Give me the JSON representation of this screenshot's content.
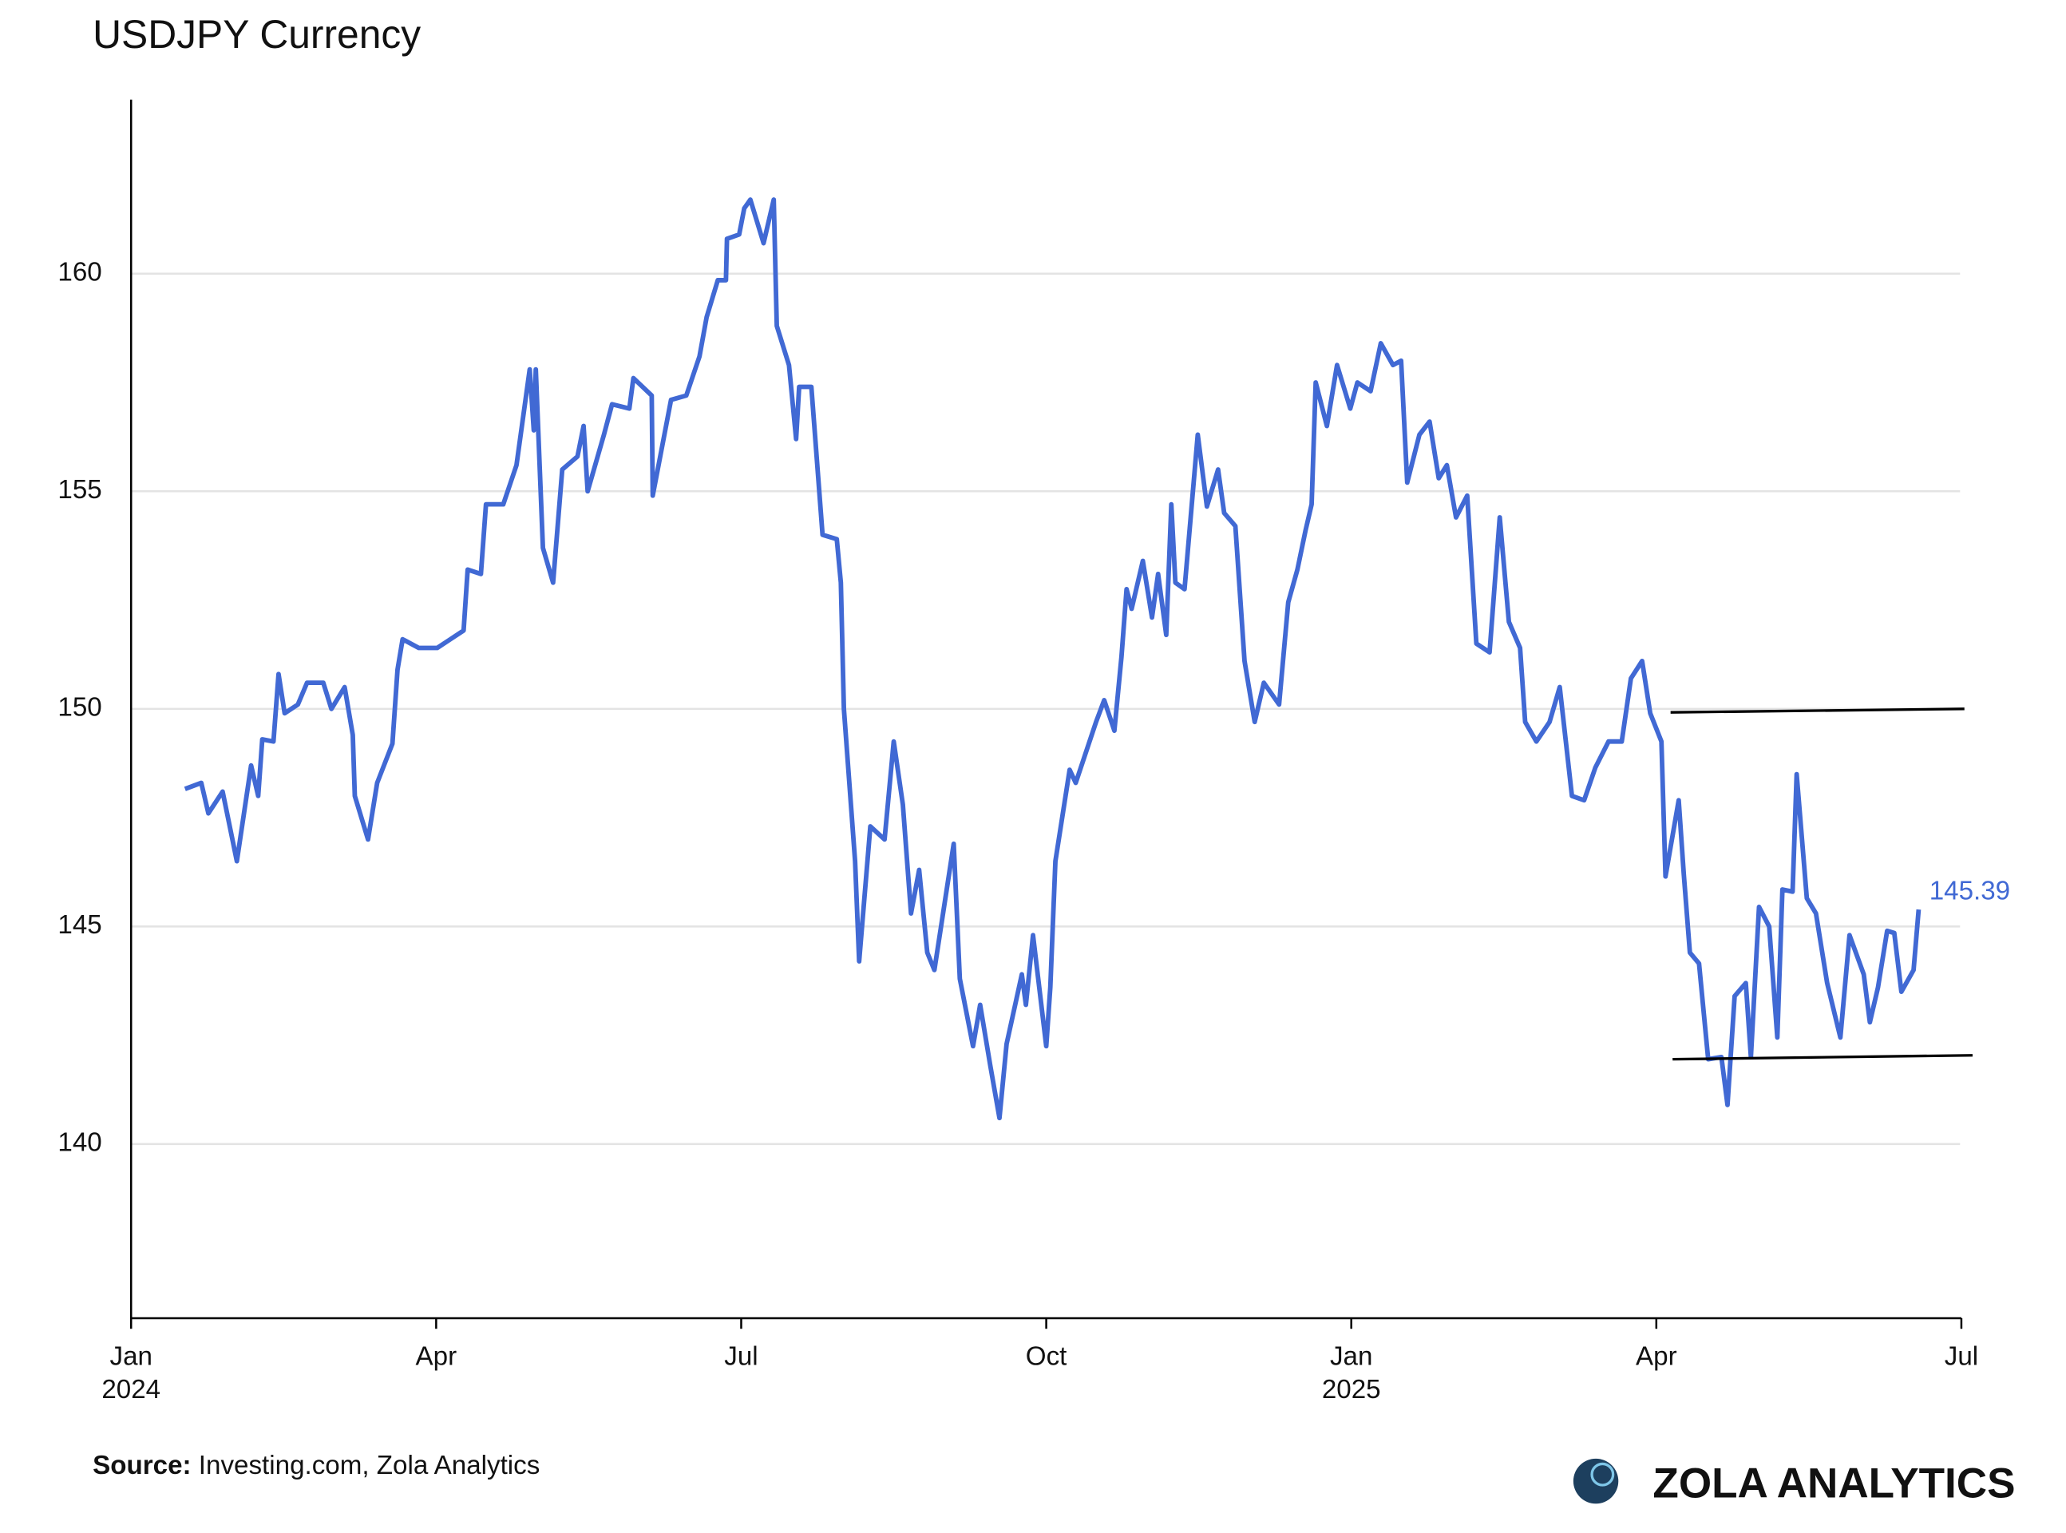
{
  "chart_data": {
    "type": "line",
    "title": "USDJPY Currency",
    "source_label": "Source:",
    "source": "Investing.com, Zola Analytics",
    "brand": "ZOLA ANALYTICS",
    "xlim": [
      0,
      18
    ],
    "xticks": [
      {
        "value": 0,
        "label": "Jan 2024"
      },
      {
        "value": 3,
        "label": "Apr"
      },
      {
        "value": 6,
        "label": "Jul"
      },
      {
        "value": 9,
        "label": "Oct"
      },
      {
        "value": 12,
        "label": "Jan 2025"
      },
      {
        "value": 15,
        "label": "Apr"
      },
      {
        "value": 18,
        "label": "Jul"
      }
    ],
    "ylim": [
      136,
      164
    ],
    "yticks": [
      140,
      145,
      150,
      155,
      160
    ],
    "grid": true,
    "x": [
      0.53,
      0.69,
      0.76,
      0.9,
      1.04,
      1.18,
      1.25,
      1.29,
      1.4,
      1.45,
      1.51,
      1.64,
      1.73,
      1.89,
      1.97,
      2.1,
      2.18,
      2.2,
      2.33,
      2.42,
      2.57,
      2.62,
      2.67,
      2.83,
      3.01,
      3.14,
      3.27,
      3.31,
      3.44,
      3.49,
      3.66,
      3.79,
      3.92,
      3.96,
      3.98,
      4.05,
      4.15,
      4.24,
      4.39,
      4.45,
      4.49,
      4.65,
      4.73,
      4.9,
      4.94,
      5.12,
      5.13,
      5.31,
      5.46,
      5.59,
      5.66,
      5.77,
      5.85,
      5.86,
      5.98,
      6.03,
      6.09,
      6.22,
      6.32,
      6.35,
      6.47,
      6.54,
      6.57,
      6.69,
      6.8,
      6.94,
      6.98,
      7.01,
      7.12,
      7.16,
      7.27,
      7.41,
      7.5,
      7.59,
      7.67,
      7.75,
      7.83,
      7.9,
      8.09,
      8.15,
      8.28,
      8.35,
      8.45,
      8.54,
      8.61,
      8.76,
      8.8,
      8.87,
      9.0,
      9.04,
      9.09,
      9.23,
      9.29,
      9.39,
      9.49,
      9.57,
      9.67,
      9.74,
      9.79,
      9.84,
      9.95,
      10.04,
      10.1,
      10.18,
      10.23,
      10.27,
      10.36,
      10.49,
      10.58,
      10.69,
      10.75,
      10.86,
      10.95,
      11.05,
      11.14,
      11.29,
      11.38,
      11.47,
      11.55,
      11.61,
      11.65,
      11.76,
      11.86,
      11.99,
      12.06,
      12.19,
      12.29,
      12.41,
      12.49,
      12.55,
      12.67,
      12.77,
      12.86,
      12.94,
      13.03,
      13.14,
      13.23,
      13.36,
      13.46,
      13.55,
      13.66,
      13.71,
      13.82,
      13.95,
      14.05,
      14.17,
      14.29,
      14.4,
      14.53,
      14.66,
      14.75,
      14.86,
      14.94,
      15.05,
      15.09,
      15.22,
      15.27,
      15.33,
      15.42,
      15.51,
      15.64,
      15.7,
      15.77,
      15.88,
      15.93,
      16.01,
      16.11,
      16.19,
      16.24,
      16.34,
      16.38,
      16.48,
      16.57,
      16.68,
      16.81,
      16.9,
      17.04,
      17.1,
      17.18,
      17.27,
      17.34,
      17.41,
      17.53,
      17.58
    ],
    "series": [
      {
        "color": "#4169d4",
        "values": [
          148.16,
          148.3,
          147.6,
          148.1,
          146.5,
          148.7,
          148.0,
          149.3,
          149.25,
          150.8,
          149.9,
          150.1,
          150.6,
          150.6,
          150.0,
          150.5,
          149.4,
          148.0,
          147.0,
          148.3,
          149.2,
          150.9,
          151.6,
          151.4,
          151.4,
          151.6,
          151.8,
          153.2,
          153.1,
          154.7,
          154.7,
          155.6,
          157.8,
          156.4,
          157.8,
          153.7,
          152.9,
          155.5,
          155.8,
          156.5,
          155.0,
          156.3,
          157.0,
          156.9,
          157.6,
          157.2,
          154.9,
          157.1,
          157.2,
          158.1,
          159.0,
          159.85,
          159.85,
          160.8,
          160.9,
          161.5,
          161.7,
          160.7,
          161.7,
          158.8,
          157.9,
          156.2,
          157.4,
          157.4,
          154.0,
          153.9,
          152.9,
          150.0,
          146.5,
          144.2,
          147.3,
          147.0,
          149.25,
          147.8,
          145.3,
          146.3,
          144.4,
          144.0,
          146.9,
          143.8,
          142.25,
          143.2,
          141.8,
          140.6,
          142.3,
          143.9,
          143.2,
          144.8,
          142.25,
          143.6,
          146.5,
          148.6,
          148.3,
          149.0,
          149.7,
          150.2,
          149.5,
          151.2,
          152.75,
          152.3,
          153.4,
          152.1,
          153.1,
          151.7,
          154.7,
          152.9,
          152.75,
          156.3,
          154.65,
          155.5,
          154.5,
          154.2,
          151.1,
          149.7,
          150.6,
          150.1,
          152.45,
          153.2,
          154.1,
          154.7,
          157.5,
          156.5,
          157.9,
          156.9,
          157.5,
          157.3,
          158.4,
          157.9,
          158.0,
          155.2,
          156.3,
          156.6,
          155.3,
          155.6,
          154.4,
          154.9,
          151.5,
          151.3,
          154.4,
          152.0,
          151.4,
          149.7,
          149.25,
          149.7,
          150.5,
          148.0,
          147.9,
          148.65,
          149.25,
          149.25,
          150.7,
          151.1,
          149.9,
          149.25,
          146.15,
          147.9,
          146.2,
          144.4,
          144.15,
          141.95,
          142.0,
          140.9,
          143.4,
          143.7,
          142.0,
          145.45,
          145.0,
          142.45,
          145.85,
          145.8,
          148.5,
          145.65,
          145.3,
          143.7,
          142.45,
          144.8,
          143.9,
          142.8,
          143.6,
          144.9,
          144.85,
          143.5,
          144.0,
          145.39
        ]
      }
    ],
    "lines": [
      {
        "color": "#000000",
        "x": [
          15.14,
          18.03
        ],
        "y": [
          149.92,
          150.0
        ]
      },
      {
        "color": "#000000",
        "x": [
          15.16,
          18.11
        ],
        "y": [
          141.95,
          142.04
        ]
      }
    ]
  }
}
